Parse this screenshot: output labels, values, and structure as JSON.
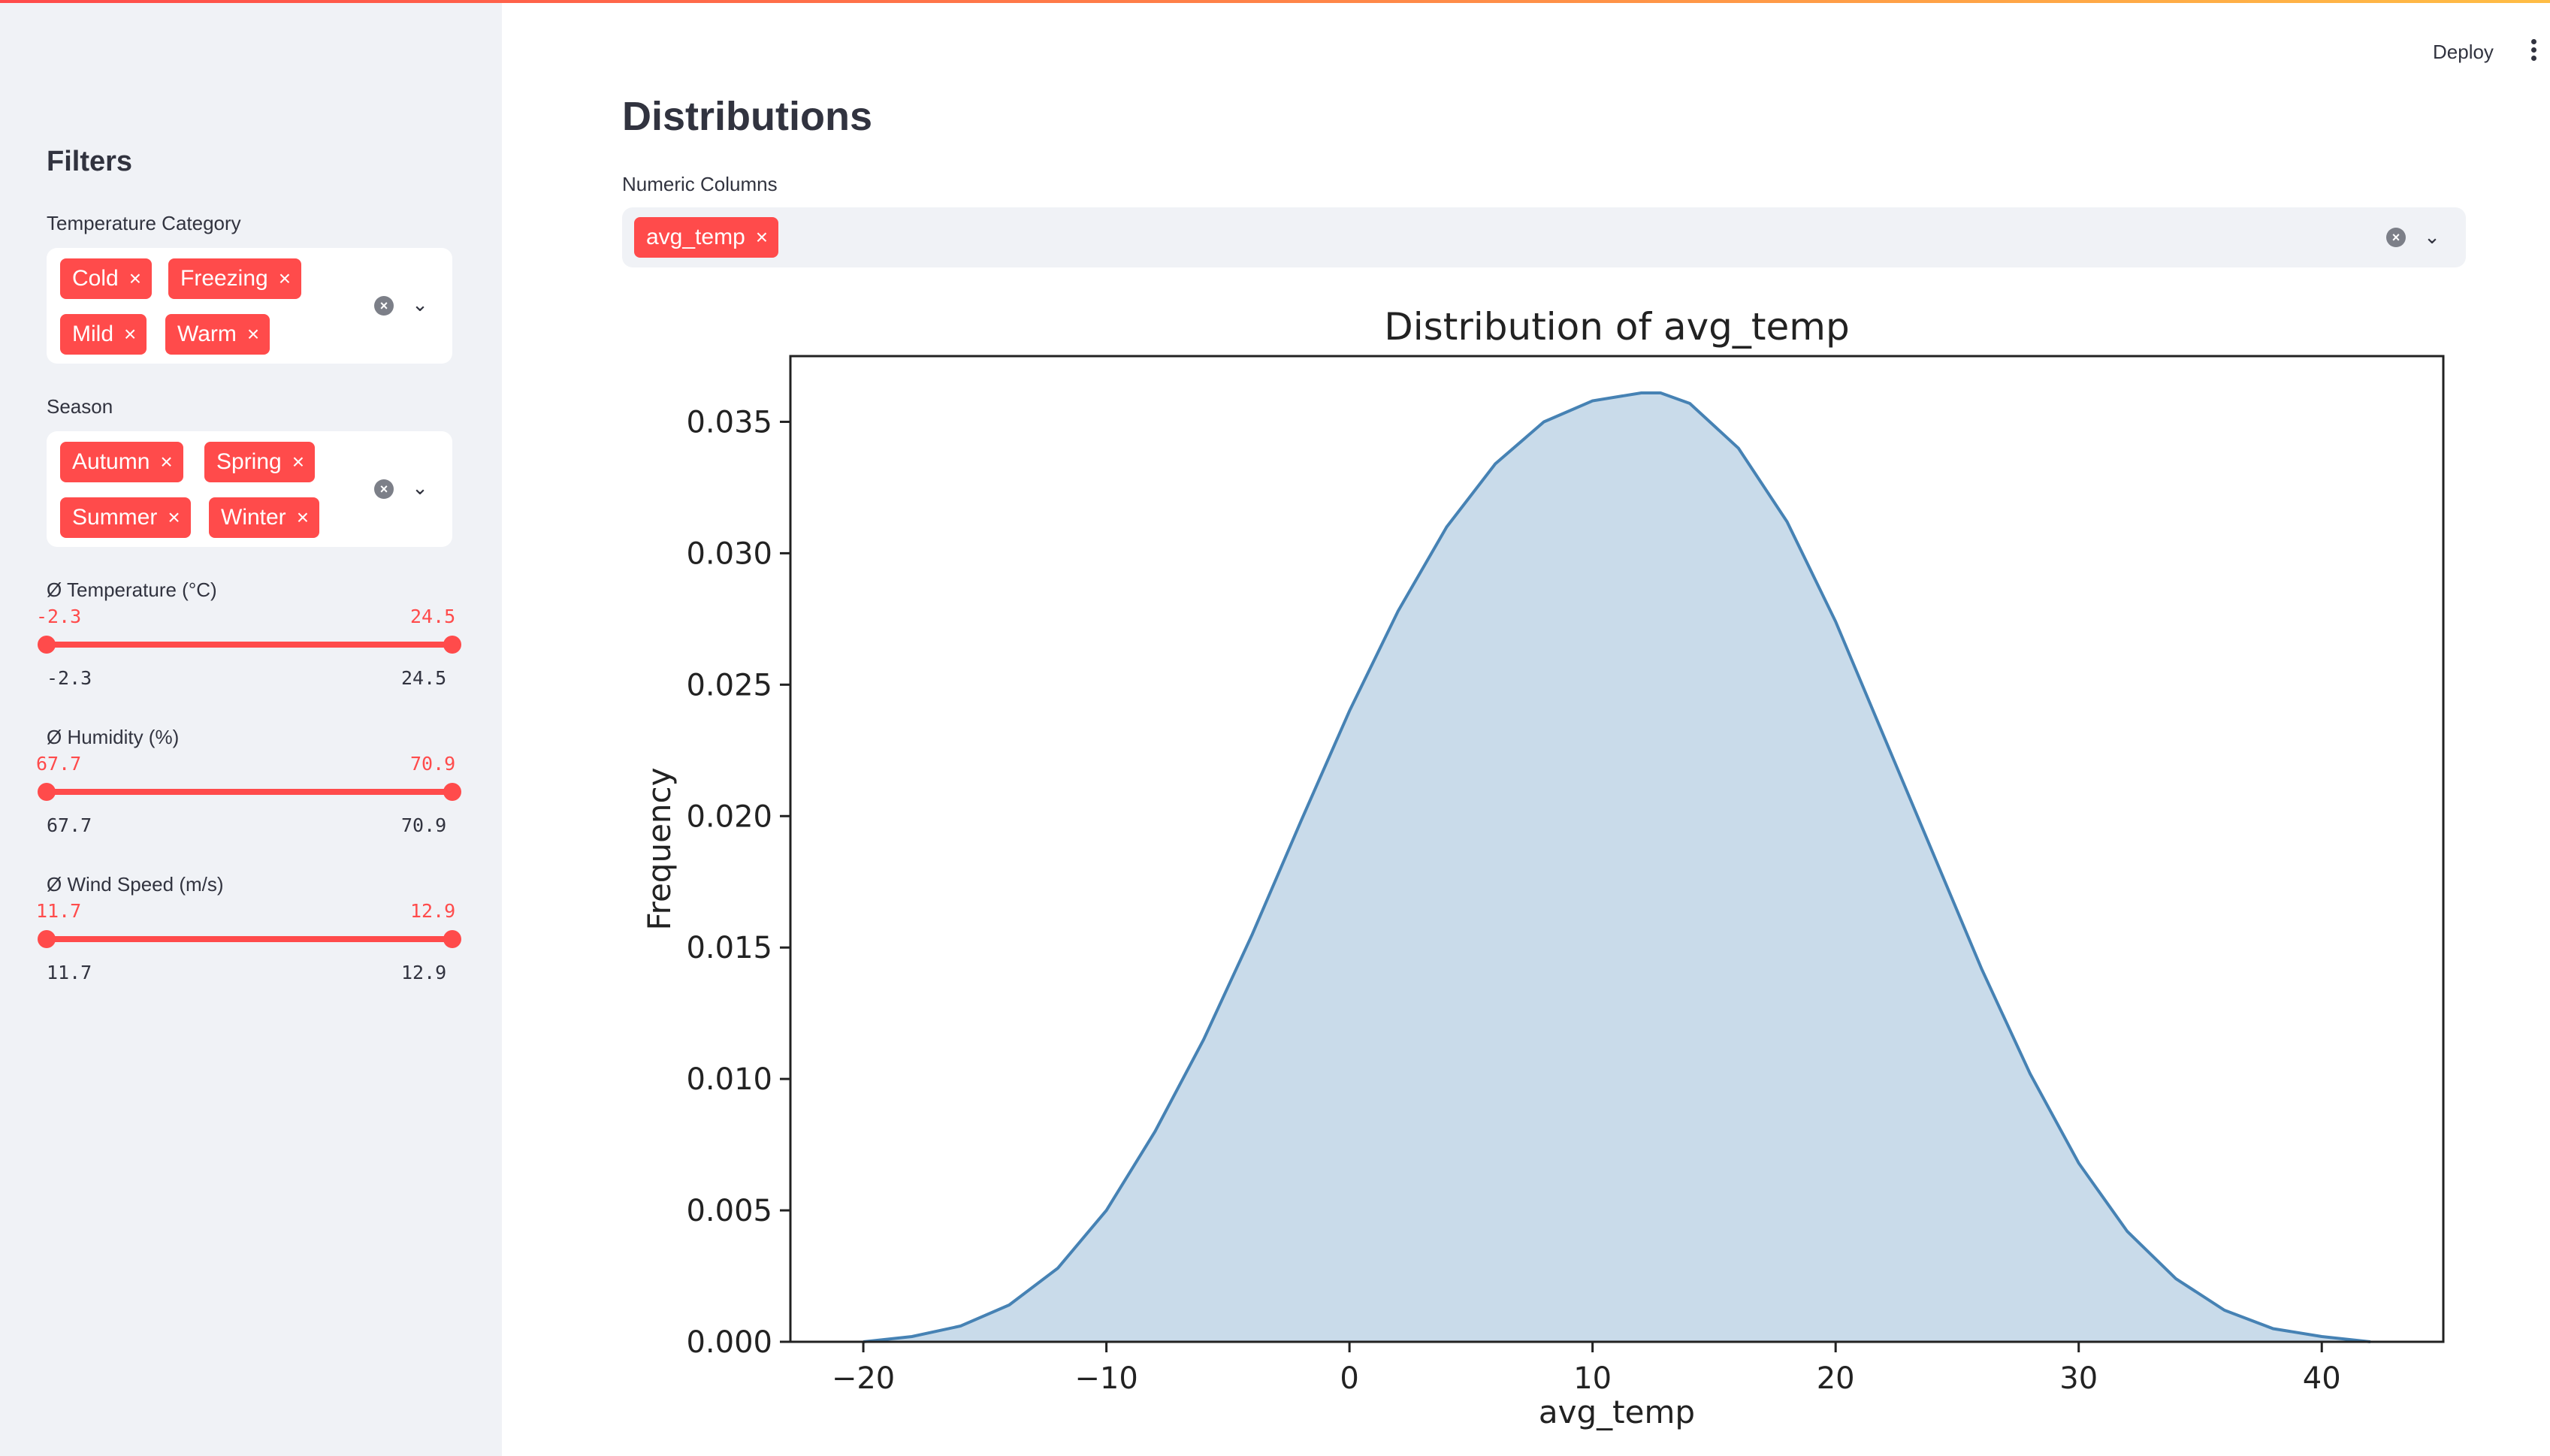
{
  "sidebar": {
    "title": "Filters",
    "temperature_category": {
      "label": "Temperature Category",
      "selected": [
        "Cold",
        "Freezing",
        "Mild",
        "Warm"
      ]
    },
    "season": {
      "label": "Season",
      "selected": [
        "Autumn",
        "Spring",
        "Summer",
        "Winter"
      ]
    },
    "sliders": [
      {
        "label": "Ø Temperature (°C)",
        "low": "-2.3",
        "high": "24.5",
        "min": "-2.3",
        "max": "24.5"
      },
      {
        "label": "Ø Humidity (%)",
        "low": "67.7",
        "high": "70.9",
        "min": "67.7",
        "max": "70.9"
      },
      {
        "label": "Ø Wind Speed (m/s)",
        "low": "11.7",
        "high": "12.9",
        "min": "11.7",
        "max": "12.9"
      }
    ]
  },
  "header": {
    "deploy_label": "Deploy",
    "menu_icon": "more-vertical-icon"
  },
  "main": {
    "title": "Distributions",
    "numeric_columns": {
      "label": "Numeric Columns",
      "selected": [
        "avg_temp"
      ]
    }
  },
  "icons": {
    "tag_remove": "×",
    "clear": "×",
    "chevron": "⌄"
  },
  "colors": {
    "accent": "#ff4b4b",
    "sidebar_bg": "#f0f2f6",
    "kde_line": "#4682b4",
    "kde_fill": "#c9dbea"
  },
  "chart_data": {
    "type": "area",
    "title": "Distribution of avg_temp",
    "xlabel": "avg_temp",
    "ylabel": "Frequency",
    "xlim": [
      -23,
      45
    ],
    "ylim": [
      0,
      0.0375
    ],
    "xticks": [
      -20,
      -10,
      0,
      10,
      20,
      30,
      40
    ],
    "xtick_labels": [
      "−20",
      "−10",
      "0",
      "10",
      "20",
      "30",
      "40"
    ],
    "yticks": [
      0,
      0.005,
      0.01,
      0.015,
      0.02,
      0.025,
      0.03,
      0.035
    ],
    "ytick_labels": [
      "0.000",
      "0.005",
      "0.010",
      "0.015",
      "0.020",
      "0.025",
      "0.030",
      "0.035"
    ],
    "grid": false,
    "series": [
      {
        "x": [
          -20,
          -18,
          -16,
          -14,
          -12,
          -10,
          -8,
          -6,
          -4,
          -2,
          0,
          2,
          4,
          6,
          8,
          10,
          12,
          12.8,
          14,
          16,
          18,
          20,
          22,
          24,
          26,
          28,
          30,
          32,
          34,
          36,
          38,
          40,
          42
        ],
        "y": [
          0.0,
          0.0002,
          0.0006,
          0.0014,
          0.0028,
          0.005,
          0.008,
          0.0115,
          0.0155,
          0.0198,
          0.024,
          0.0278,
          0.031,
          0.0334,
          0.035,
          0.0358,
          0.0361,
          0.0361,
          0.0357,
          0.034,
          0.0312,
          0.0274,
          0.023,
          0.0186,
          0.0142,
          0.0102,
          0.0068,
          0.0042,
          0.0024,
          0.0012,
          0.0005,
          0.0002,
          0.0
        ]
      }
    ]
  }
}
